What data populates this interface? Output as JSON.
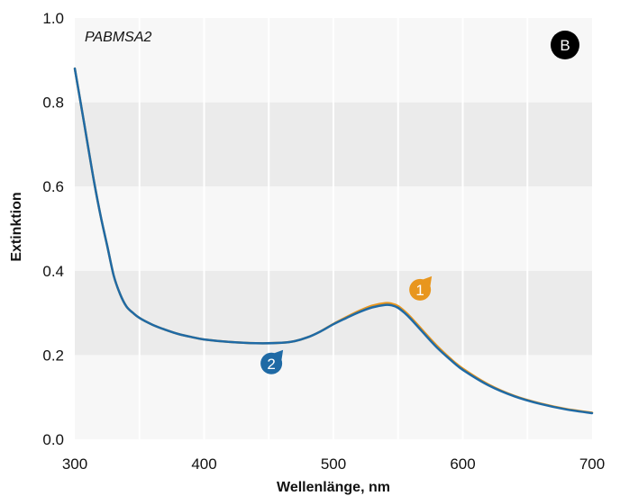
{
  "chart_data": {
    "type": "line",
    "xlabel": "Wellenlänge, nm",
    "ylabel": "Extinktion",
    "xlim": [
      300,
      700
    ],
    "ylim": [
      0.0,
      1.0
    ],
    "x_ticks": [
      "300",
      "400",
      "500",
      "600",
      "700"
    ],
    "y_ticks": [
      "0.0",
      "0.2",
      "0.4",
      "0.6",
      "0.8",
      "1.0"
    ],
    "annotation": "PABMSA2",
    "panel_label": "B",
    "grid": true,
    "colors": {
      "band_light": "#f7f7f7",
      "band_dark": "#ebebeb",
      "series_1": "#e8961e",
      "series_2": "#1f6aa5",
      "panel_badge": "#000000"
    },
    "series": [
      {
        "marker_label": "1",
        "marker_at": [
          567,
          0.355
        ],
        "x": [
          300,
          305,
          310,
          315,
          320,
          325,
          330,
          335,
          340,
          345,
          350,
          360,
          370,
          380,
          390,
          400,
          420,
          440,
          460,
          470,
          480,
          490,
          500,
          510,
          520,
          530,
          540,
          545,
          550,
          555,
          560,
          570,
          580,
          590,
          600,
          620,
          640,
          660,
          680,
          700
        ],
        "y": [
          0.88,
          0.79,
          0.7,
          0.61,
          0.53,
          0.46,
          0.39,
          0.345,
          0.315,
          0.3,
          0.288,
          0.272,
          0.26,
          0.25,
          0.243,
          0.237,
          0.231,
          0.228,
          0.229,
          0.233,
          0.242,
          0.256,
          0.274,
          0.29,
          0.305,
          0.317,
          0.323,
          0.322,
          0.316,
          0.304,
          0.289,
          0.255,
          0.222,
          0.193,
          0.168,
          0.13,
          0.103,
          0.085,
          0.072,
          0.063
        ]
      },
      {
        "marker_label": "2",
        "marker_at": [
          452,
          0.18
        ],
        "x": [
          300,
          305,
          310,
          315,
          320,
          325,
          330,
          335,
          340,
          345,
          350,
          360,
          370,
          380,
          390,
          400,
          420,
          440,
          460,
          470,
          480,
          490,
          500,
          510,
          520,
          530,
          540,
          545,
          550,
          555,
          560,
          570,
          580,
          590,
          600,
          620,
          640,
          660,
          680,
          700
        ],
        "y": [
          0.88,
          0.79,
          0.7,
          0.61,
          0.53,
          0.46,
          0.39,
          0.345,
          0.315,
          0.3,
          0.288,
          0.272,
          0.26,
          0.25,
          0.243,
          0.237,
          0.231,
          0.228,
          0.229,
          0.233,
          0.242,
          0.256,
          0.273,
          0.288,
          0.302,
          0.313,
          0.319,
          0.318,
          0.312,
          0.3,
          0.285,
          0.251,
          0.218,
          0.19,
          0.165,
          0.128,
          0.102,
          0.084,
          0.071,
          0.062
        ]
      }
    ]
  }
}
